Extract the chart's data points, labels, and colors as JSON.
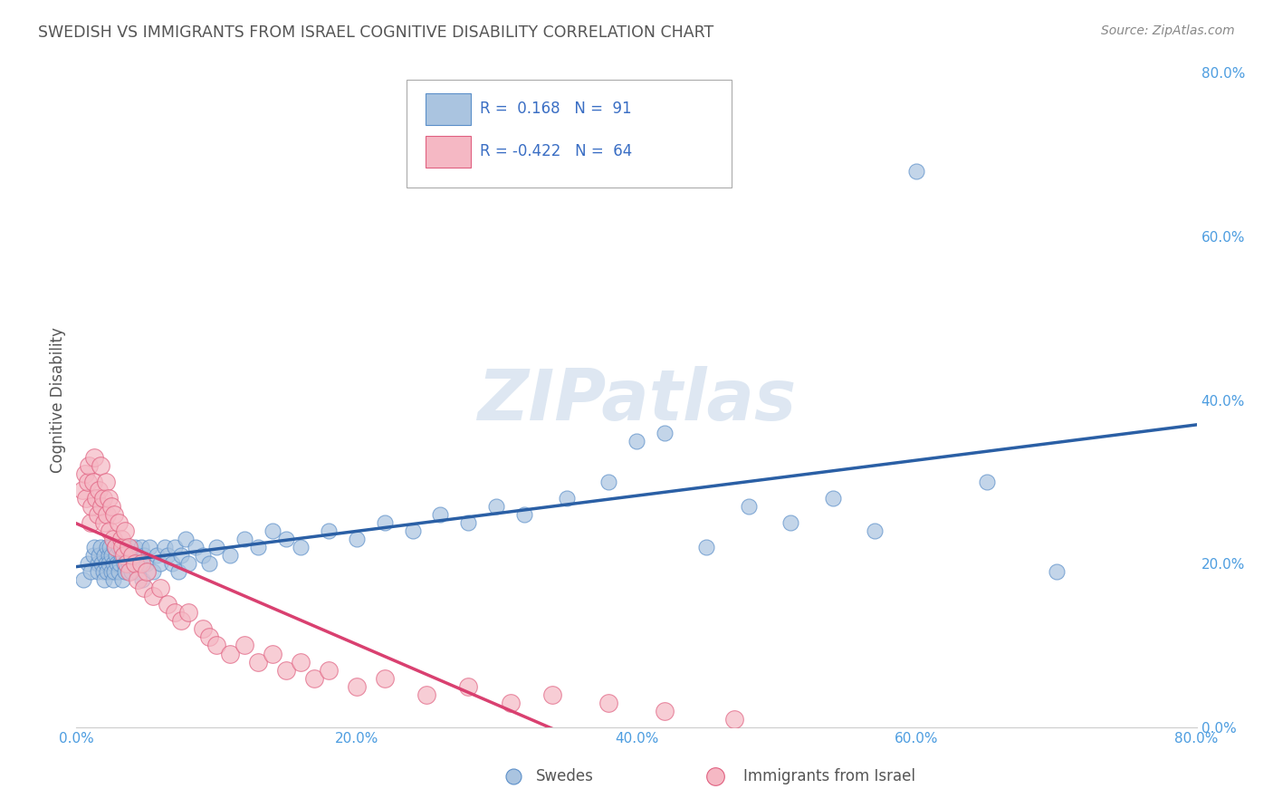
{
  "title": "SWEDISH VS IMMIGRANTS FROM ISRAEL COGNITIVE DISABILITY CORRELATION CHART",
  "source": "Source: ZipAtlas.com",
  "xlabel_swedes": "Swedes",
  "xlabel_israel": "Immigrants from Israel",
  "ylabel": "Cognitive Disability",
  "R_swedes": 0.168,
  "N_swedes": 91,
  "R_israel": -0.422,
  "N_israel": 64,
  "swedes_color": "#aac4e0",
  "swedes_edge_color": "#5b8fc9",
  "swedes_line_color": "#2a5fa5",
  "israel_color": "#f5b8c4",
  "israel_edge_color": "#e06080",
  "israel_line_color": "#d94070",
  "background_color": "#ffffff",
  "plot_bg_color": "#ffffff",
  "watermark": "ZIPatlas",
  "xmin": 0.0,
  "xmax": 0.8,
  "ymin": 0.0,
  "ymax": 0.8,
  "yticks": [
    0.0,
    0.2,
    0.4,
    0.6,
    0.8
  ],
  "xticks": [
    0.0,
    0.2,
    0.4,
    0.6,
    0.8
  ],
  "tick_color": "#4d9de0",
  "swedes_x": [
    0.005,
    0.008,
    0.01,
    0.012,
    0.013,
    0.015,
    0.015,
    0.016,
    0.017,
    0.018,
    0.019,
    0.02,
    0.02,
    0.021,
    0.022,
    0.022,
    0.023,
    0.023,
    0.024,
    0.025,
    0.025,
    0.026,
    0.026,
    0.027,
    0.027,
    0.028,
    0.029,
    0.03,
    0.03,
    0.031,
    0.032,
    0.033,
    0.034,
    0.035,
    0.035,
    0.036,
    0.037,
    0.038,
    0.039,
    0.04,
    0.041,
    0.042,
    0.043,
    0.044,
    0.045,
    0.046,
    0.047,
    0.048,
    0.05,
    0.052,
    0.055,
    0.057,
    0.06,
    0.063,
    0.065,
    0.068,
    0.07,
    0.073,
    0.075,
    0.078,
    0.08,
    0.085,
    0.09,
    0.095,
    0.1,
    0.11,
    0.12,
    0.13,
    0.14,
    0.15,
    0.16,
    0.18,
    0.2,
    0.22,
    0.24,
    0.26,
    0.28,
    0.3,
    0.32,
    0.35,
    0.38,
    0.4,
    0.42,
    0.45,
    0.48,
    0.51,
    0.54,
    0.57,
    0.6,
    0.65,
    0.7
  ],
  "swedes_y": [
    0.18,
    0.2,
    0.19,
    0.21,
    0.22,
    0.2,
    0.19,
    0.21,
    0.22,
    0.2,
    0.19,
    0.21,
    0.18,
    0.2,
    0.22,
    0.19,
    0.21,
    0.2,
    0.22,
    0.19,
    0.21,
    0.2,
    0.18,
    0.22,
    0.19,
    0.21,
    0.2,
    0.19,
    0.22,
    0.2,
    0.21,
    0.18,
    0.2,
    0.22,
    0.19,
    0.21,
    0.2,
    0.22,
    0.19,
    0.21,
    0.2,
    0.22,
    0.19,
    0.21,
    0.2,
    0.22,
    0.18,
    0.21,
    0.2,
    0.22,
    0.19,
    0.21,
    0.2,
    0.22,
    0.21,
    0.2,
    0.22,
    0.19,
    0.21,
    0.23,
    0.2,
    0.22,
    0.21,
    0.2,
    0.22,
    0.21,
    0.23,
    0.22,
    0.24,
    0.23,
    0.22,
    0.24,
    0.23,
    0.25,
    0.24,
    0.26,
    0.25,
    0.27,
    0.26,
    0.28,
    0.3,
    0.35,
    0.36,
    0.22,
    0.27,
    0.25,
    0.28,
    0.24,
    0.68,
    0.3,
    0.19
  ],
  "israel_x": [
    0.004,
    0.006,
    0.007,
    0.008,
    0.009,
    0.01,
    0.011,
    0.012,
    0.013,
    0.014,
    0.015,
    0.016,
    0.017,
    0.018,
    0.019,
    0.02,
    0.021,
    0.022,
    0.023,
    0.024,
    0.025,
    0.026,
    0.027,
    0.028,
    0.03,
    0.032,
    0.033,
    0.034,
    0.035,
    0.036,
    0.037,
    0.038,
    0.04,
    0.042,
    0.044,
    0.046,
    0.048,
    0.05,
    0.055,
    0.06,
    0.065,
    0.07,
    0.075,
    0.08,
    0.09,
    0.095,
    0.1,
    0.11,
    0.12,
    0.13,
    0.14,
    0.15,
    0.16,
    0.17,
    0.18,
    0.2,
    0.22,
    0.25,
    0.28,
    0.31,
    0.34,
    0.38,
    0.42,
    0.47
  ],
  "israel_y": [
    0.29,
    0.31,
    0.28,
    0.3,
    0.32,
    0.25,
    0.27,
    0.3,
    0.33,
    0.28,
    0.26,
    0.29,
    0.32,
    0.27,
    0.28,
    0.25,
    0.3,
    0.26,
    0.28,
    0.24,
    0.27,
    0.23,
    0.26,
    0.22,
    0.25,
    0.23,
    0.22,
    0.21,
    0.24,
    0.2,
    0.22,
    0.19,
    0.21,
    0.2,
    0.18,
    0.2,
    0.17,
    0.19,
    0.16,
    0.17,
    0.15,
    0.14,
    0.13,
    0.14,
    0.12,
    0.11,
    0.1,
    0.09,
    0.1,
    0.08,
    0.09,
    0.07,
    0.08,
    0.06,
    0.07,
    0.05,
    0.06,
    0.04,
    0.05,
    0.03,
    0.04,
    0.03,
    0.02,
    0.01
  ]
}
